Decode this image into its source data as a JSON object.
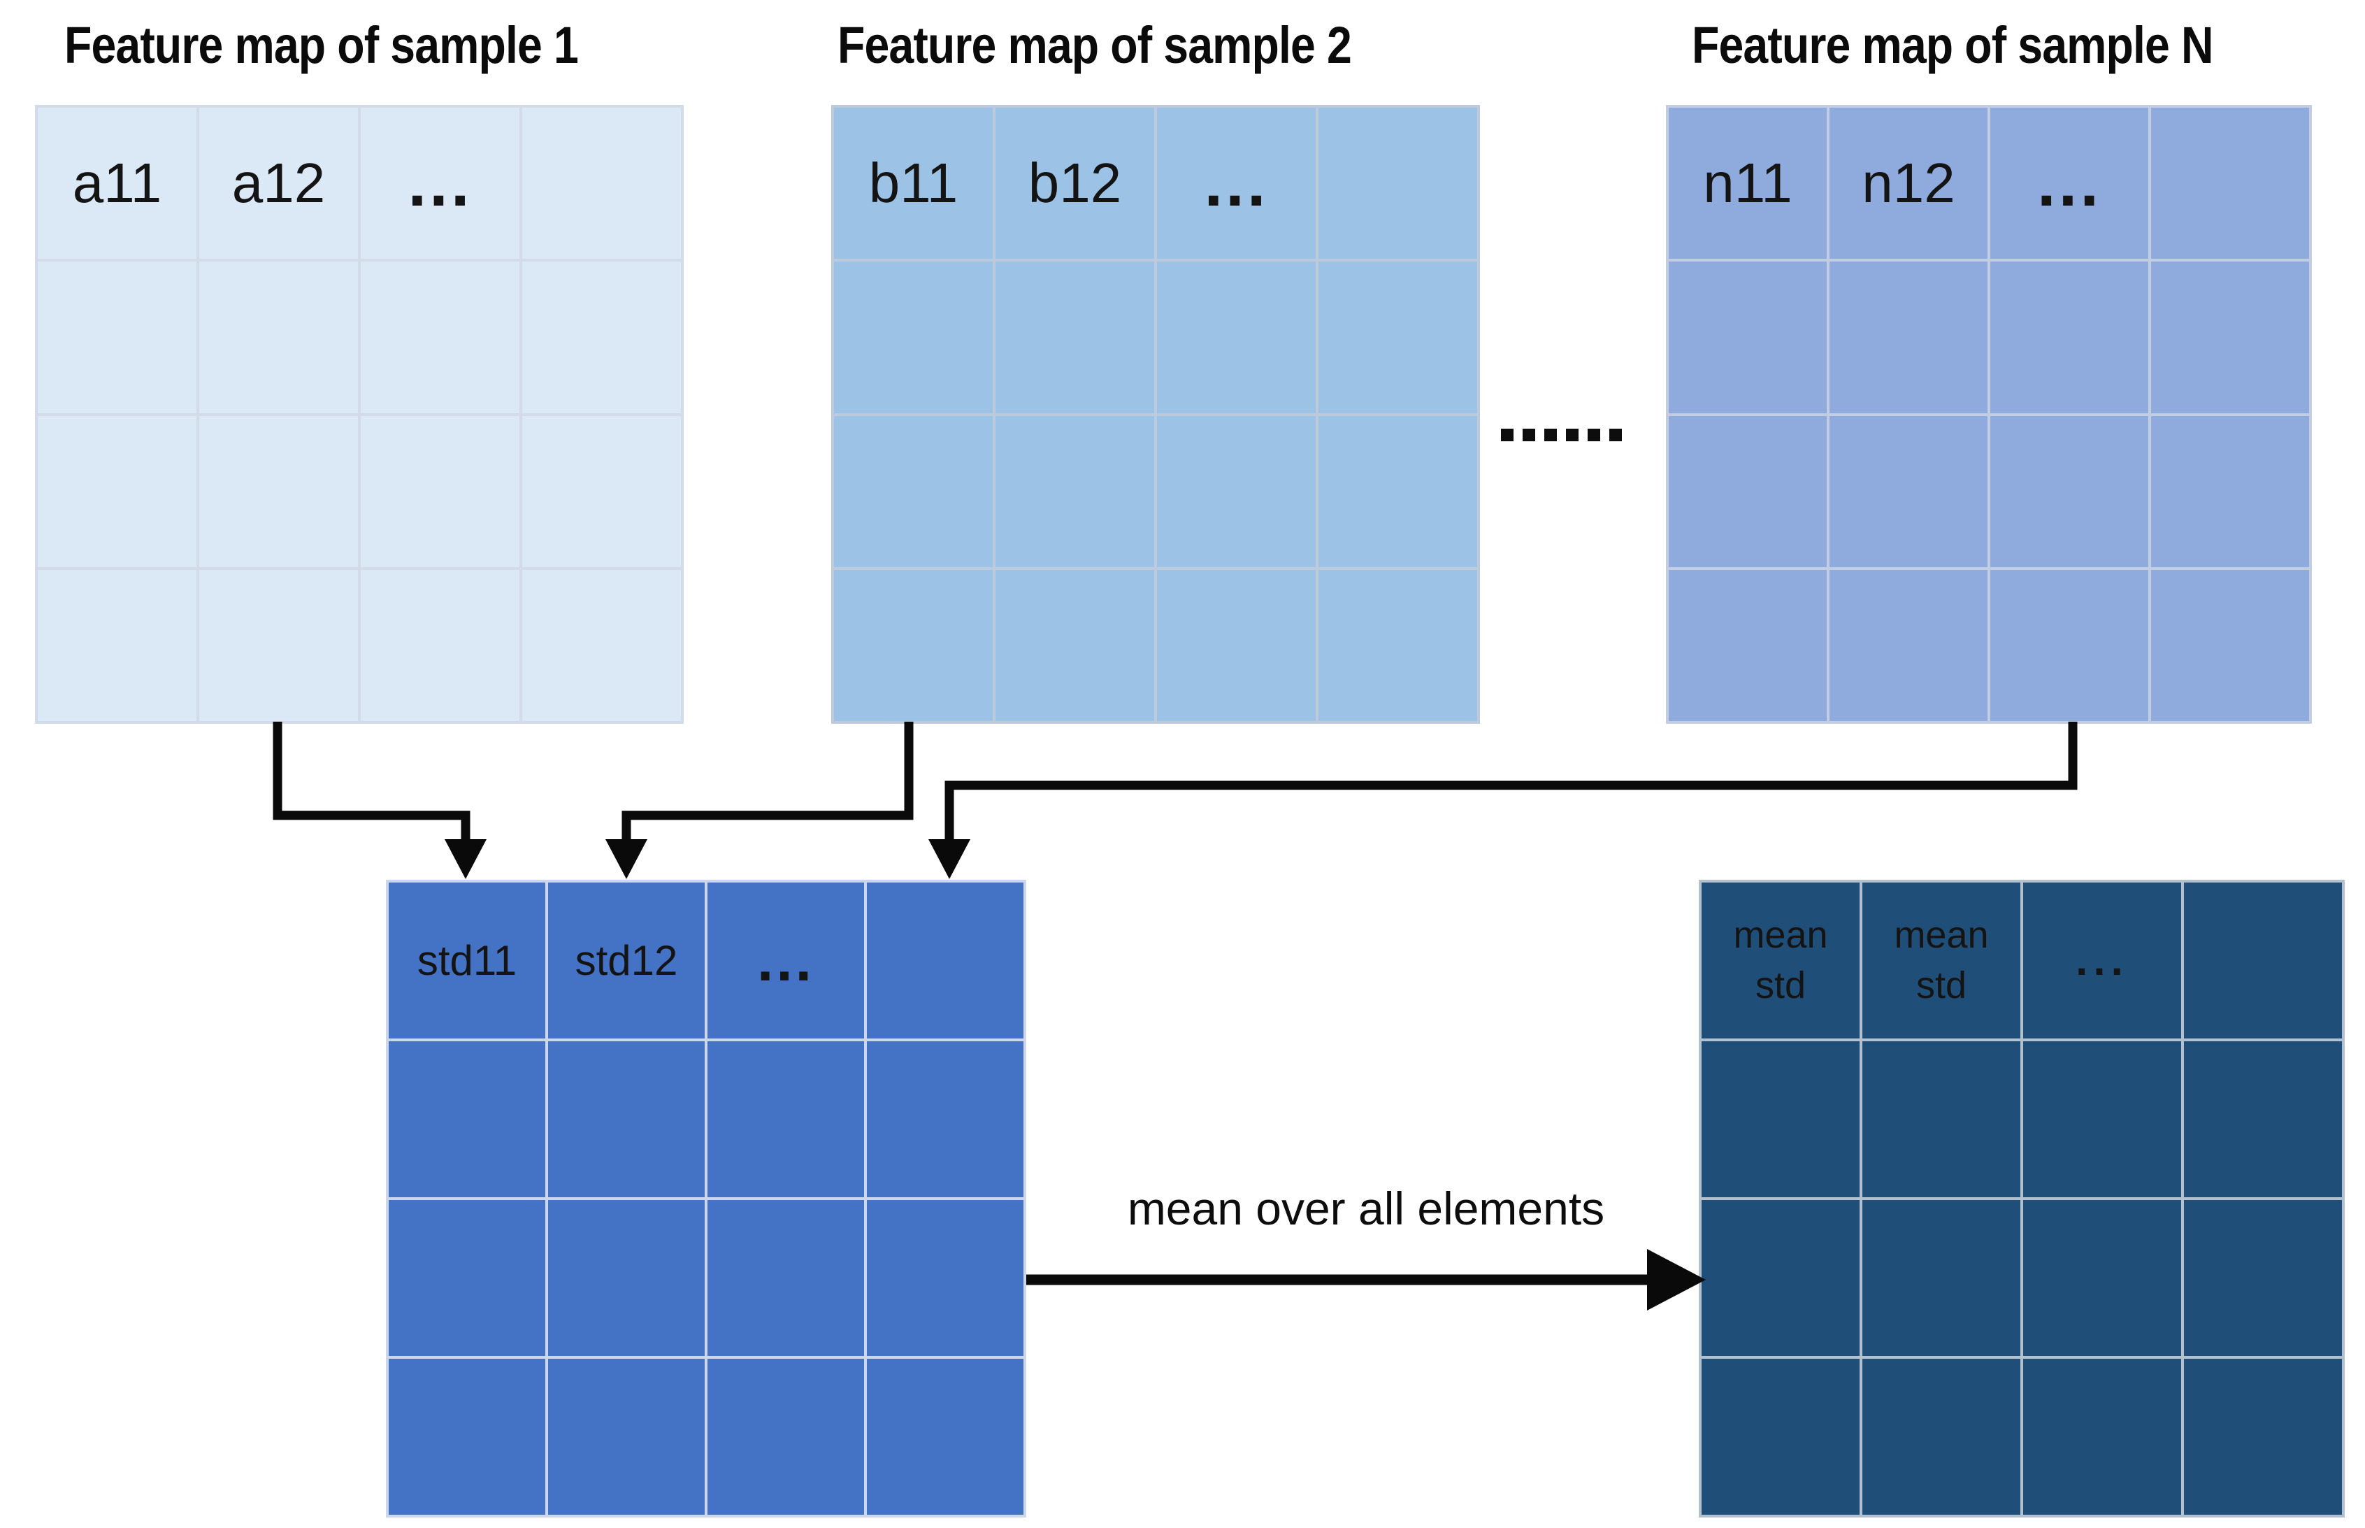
{
  "grid_shape": {
    "rows": 4,
    "cols": 4
  },
  "grids": {
    "sample1": {
      "title": "Feature map of sample 1",
      "row1_cells": [
        "a11",
        "a12",
        "...",
        ""
      ]
    },
    "sample2": {
      "title": "Feature map of sample 2",
      "row1_cells": [
        "b11",
        "b12",
        "...",
        ""
      ]
    },
    "sampleN": {
      "title": "Feature map of sample N",
      "row1_cells": [
        "n11",
        "n12",
        "...",
        ""
      ]
    },
    "std": {
      "row1_cells": [
        "std11",
        "std12",
        "...",
        ""
      ]
    },
    "mean_std": {
      "row1_cells": [
        "mean\nstd",
        "mean\nstd",
        "...",
        ""
      ]
    }
  },
  "separator": {
    "dots": "......"
  },
  "arrow_label": "mean over all elements",
  "colors": {
    "bg": "#ffffff",
    "f1": "#dbe8f5",
    "l1": "#d2dbe7",
    "f2": "#9cc3e6",
    "l2": "#bccadb",
    "fn": "#8faadc",
    "ln": "#c3cde2",
    "fstd": "#4472c4",
    "lstd": "#ccd7ec",
    "fmean": "#1f4e78",
    "lmean": "#b3c0cd",
    "arrow": "#0a0a0a",
    "text": "#111111"
  }
}
